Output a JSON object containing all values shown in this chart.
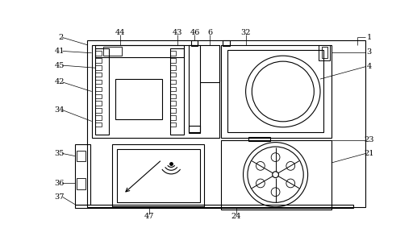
{
  "fig_width": 5.17,
  "fig_height": 3.04,
  "dpi": 100,
  "bg_color": "#ffffff",
  "line_color": "#000000"
}
